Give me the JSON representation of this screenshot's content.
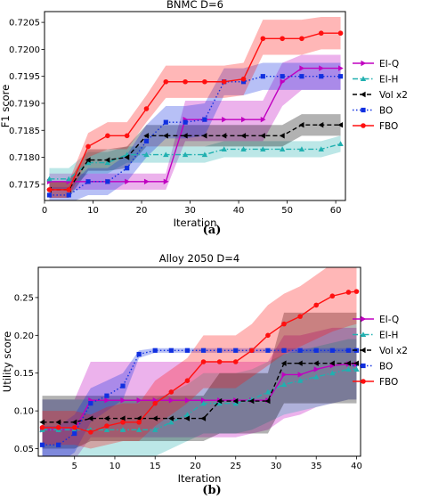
{
  "chart_data": [
    {
      "type": "line",
      "title": "BNMC    D=6",
      "xlabel": "Iteration",
      "ylabel": "F1 score",
      "xlim": [
        0,
        62
      ],
      "ylim": [
        0.7172,
        0.7207
      ],
      "xticks": [
        0,
        10,
        20,
        30,
        40,
        50,
        60
      ],
      "yticks": [
        0.7175,
        0.718,
        0.7185,
        0.719,
        0.7195,
        0.72,
        0.7205
      ],
      "ytick_labels": [
        "0.7175",
        "0.7180",
        "0.7185",
        "0.7190",
        "0.7195",
        "0.7200",
        "0.7205"
      ],
      "sublabel": "(a)",
      "legend_position": "right",
      "series": [
        {
          "name": "EI-Q",
          "color": "#c000c0",
          "dash": "solid",
          "marker": "triangle-right",
          "x": [
            1,
            5,
            9,
            13,
            17,
            21,
            25,
            29,
            33,
            37,
            41,
            45,
            49,
            53,
            57,
            61
          ],
          "y": [
            0.71755,
            0.71755,
            0.71755,
            0.71755,
            0.71755,
            0.71755,
            0.71755,
            0.7187,
            0.7187,
            0.7187,
            0.7187,
            0.7187,
            0.7194,
            0.71965,
            0.71965,
            0.71965
          ],
          "lo": [
            0.7174,
            0.7174,
            0.7174,
            0.7174,
            0.7174,
            0.7174,
            0.7174,
            0.7183,
            0.7183,
            0.7183,
            0.7183,
            0.7183,
            0.71895,
            0.71925,
            0.71925,
            0.71925
          ],
          "hi": [
            0.7177,
            0.7177,
            0.7177,
            0.7177,
            0.7177,
            0.7177,
            0.7177,
            0.71905,
            0.71905,
            0.71905,
            0.71905,
            0.71905,
            0.71975,
            0.7199,
            0.7199,
            0.7199
          ]
        },
        {
          "name": "EI-H",
          "color": "#20b0b0",
          "dash": "dashdot",
          "marker": "triangle-up",
          "x": [
            1,
            5,
            9,
            13,
            17,
            21,
            25,
            29,
            33,
            37,
            41,
            45,
            49,
            53,
            57,
            61
          ],
          "y": [
            0.7176,
            0.7176,
            0.7179,
            0.7179,
            0.71805,
            0.71805,
            0.71805,
            0.71805,
            0.71805,
            0.71815,
            0.71815,
            0.71815,
            0.71815,
            0.71815,
            0.71815,
            0.71825
          ],
          "lo": [
            0.7174,
            0.7174,
            0.7177,
            0.7177,
            0.7179,
            0.7179,
            0.7179,
            0.7179,
            0.7179,
            0.718,
            0.718,
            0.718,
            0.718,
            0.718,
            0.718,
            0.7181
          ],
          "hi": [
            0.7178,
            0.7178,
            0.7181,
            0.7181,
            0.7182,
            0.7182,
            0.7182,
            0.7182,
            0.7182,
            0.7183,
            0.7183,
            0.7183,
            0.7183,
            0.7183,
            0.7183,
            0.7184
          ]
        },
        {
          "name": "Vol x2",
          "color": "#000000",
          "dash": "dashed",
          "marker": "triangle-left",
          "x": [
            1,
            5,
            9,
            13,
            17,
            21,
            25,
            29,
            33,
            37,
            41,
            45,
            49,
            53,
            57,
            61
          ],
          "y": [
            0.7174,
            0.7174,
            0.71795,
            0.71795,
            0.718,
            0.7184,
            0.7184,
            0.7184,
            0.7184,
            0.7184,
            0.7184,
            0.7184,
            0.7184,
            0.7186,
            0.7186,
            0.7186
          ],
          "lo": [
            0.71725,
            0.71725,
            0.71775,
            0.71775,
            0.7178,
            0.7182,
            0.7182,
            0.7182,
            0.7182,
            0.7182,
            0.7182,
            0.7182,
            0.7182,
            0.7184,
            0.7184,
            0.7184
          ],
          "hi": [
            0.71755,
            0.71755,
            0.71815,
            0.71815,
            0.7182,
            0.7186,
            0.7186,
            0.7186,
            0.7186,
            0.7186,
            0.7186,
            0.7186,
            0.7186,
            0.7188,
            0.7188,
            0.7188
          ]
        },
        {
          "name": "BO",
          "color": "#1030e0",
          "dash": "dotted",
          "marker": "square",
          "x": [
            1,
            5,
            9,
            13,
            17,
            21,
            25,
            29,
            33,
            37,
            41,
            45,
            49,
            53,
            57,
            61
          ],
          "y": [
            0.7173,
            0.7173,
            0.71755,
            0.71755,
            0.7178,
            0.7183,
            0.71865,
            0.71865,
            0.7187,
            0.7194,
            0.7194,
            0.7195,
            0.7195,
            0.7195,
            0.7195,
            0.7195
          ],
          "lo": [
            0.71715,
            0.71715,
            0.7173,
            0.7173,
            0.71755,
            0.718,
            0.71835,
            0.71835,
            0.7184,
            0.71915,
            0.71915,
            0.71925,
            0.71925,
            0.71925,
            0.71925,
            0.71925
          ],
          "hi": [
            0.71745,
            0.71745,
            0.7178,
            0.7178,
            0.71805,
            0.7186,
            0.71895,
            0.71895,
            0.719,
            0.71965,
            0.71965,
            0.71975,
            0.71975,
            0.71975,
            0.71975,
            0.71975
          ]
        },
        {
          "name": "FBO",
          "color": "#ff1010",
          "dash": "solid",
          "marker": "circle",
          "x": [
            1,
            5,
            9,
            13,
            17,
            21,
            25,
            29,
            33,
            37,
            41,
            45,
            49,
            53,
            57,
            61
          ],
          "y": [
            0.7174,
            0.7174,
            0.7182,
            0.7184,
            0.7184,
            0.7189,
            0.7194,
            0.7194,
            0.7194,
            0.7194,
            0.71945,
            0.7202,
            0.7202,
            0.7202,
            0.7203,
            0.7203
          ],
          "lo": [
            0.71725,
            0.71725,
            0.718,
            0.71815,
            0.71815,
            0.71865,
            0.7191,
            0.7191,
            0.7191,
            0.7191,
            0.71915,
            0.7199,
            0.7199,
            0.7199,
            0.72,
            0.72
          ],
          "hi": [
            0.71755,
            0.71755,
            0.71845,
            0.71865,
            0.71865,
            0.71915,
            0.7197,
            0.7197,
            0.7197,
            0.7197,
            0.71975,
            0.72055,
            0.72055,
            0.72055,
            0.7206,
            0.7206
          ]
        }
      ]
    },
    {
      "type": "line",
      "title": "Alloy 2050    D=4",
      "xlabel": "Iteration",
      "ylabel": "Utility score",
      "xlim": [
        0.5,
        40.5
      ],
      "ylim": [
        0.04,
        0.29
      ],
      "xticks": [
        5,
        10,
        15,
        20,
        25,
        30,
        35,
        40
      ],
      "yticks": [
        0.05,
        0.1,
        0.15,
        0.2,
        0.25
      ],
      "ytick_labels": [
        "0.05",
        "0.10",
        "0.15",
        "0.20",
        "0.25"
      ],
      "sublabel": "(b)",
      "legend_position": "right",
      "series": [
        {
          "name": "EI-Q",
          "color": "#c000c0",
          "dash": "solid",
          "marker": "triangle-right",
          "x": [
            1,
            3,
            5,
            7,
            9,
            11,
            13,
            15,
            17,
            19,
            21,
            23,
            25,
            27,
            29,
            31,
            33,
            35,
            37,
            39,
            40
          ],
          "y": [
            0.075,
            0.075,
            0.075,
            0.114,
            0.114,
            0.114,
            0.114,
            0.114,
            0.114,
            0.114,
            0.114,
            0.114,
            0.114,
            0.114,
            0.114,
            0.148,
            0.148,
            0.155,
            0.16,
            0.162,
            0.162
          ],
          "lo": [
            0.035,
            0.035,
            0.035,
            0.065,
            0.065,
            0.065,
            0.065,
            0.065,
            0.065,
            0.065,
            0.065,
            0.065,
            0.065,
            0.07,
            0.075,
            0.09,
            0.095,
            0.105,
            0.11,
            0.115,
            0.115
          ],
          "hi": [
            0.115,
            0.115,
            0.115,
            0.165,
            0.165,
            0.165,
            0.165,
            0.165,
            0.165,
            0.165,
            0.165,
            0.165,
            0.165,
            0.165,
            0.165,
            0.2,
            0.2,
            0.205,
            0.21,
            0.21,
            0.21
          ]
        },
        {
          "name": "EI-H",
          "color": "#20b0b0",
          "dash": "dashdot",
          "marker": "triangle-up",
          "x": [
            1,
            3,
            5,
            7,
            9,
            11,
            13,
            15,
            17,
            19,
            21,
            23,
            25,
            27,
            29,
            31,
            33,
            35,
            37,
            39,
            40
          ],
          "y": [
            0.075,
            0.075,
            0.075,
            0.075,
            0.075,
            0.075,
            0.075,
            0.075,
            0.085,
            0.095,
            0.11,
            0.11,
            0.11,
            0.115,
            0.125,
            0.135,
            0.14,
            0.145,
            0.15,
            0.155,
            0.155
          ],
          "lo": [
            0.035,
            0.035,
            0.035,
            0.035,
            0.035,
            0.035,
            0.035,
            0.04,
            0.05,
            0.06,
            0.07,
            0.07,
            0.07,
            0.075,
            0.085,
            0.095,
            0.1,
            0.105,
            0.11,
            0.115,
            0.115
          ],
          "hi": [
            0.115,
            0.115,
            0.115,
            0.115,
            0.115,
            0.115,
            0.115,
            0.115,
            0.125,
            0.135,
            0.15,
            0.15,
            0.15,
            0.155,
            0.165,
            0.175,
            0.18,
            0.185,
            0.19,
            0.195,
            0.195
          ]
        },
        {
          "name": "Vol x2",
          "color": "#000000",
          "dash": "dashed",
          "marker": "triangle-left",
          "x": [
            1,
            3,
            5,
            7,
            9,
            11,
            13,
            15,
            17,
            19,
            21,
            23,
            25,
            27,
            29,
            31,
            33,
            35,
            37,
            39,
            40
          ],
          "y": [
            0.085,
            0.085,
            0.085,
            0.09,
            0.09,
            0.09,
            0.09,
            0.09,
            0.09,
            0.09,
            0.09,
            0.113,
            0.113,
            0.113,
            0.113,
            0.163,
            0.163,
            0.163,
            0.163,
            0.163,
            0.163
          ],
          "lo": [
            0.05,
            0.05,
            0.05,
            0.06,
            0.06,
            0.06,
            0.06,
            0.06,
            0.06,
            0.06,
            0.06,
            0.07,
            0.07,
            0.07,
            0.07,
            0.11,
            0.11,
            0.11,
            0.11,
            0.11,
            0.11
          ],
          "hi": [
            0.12,
            0.12,
            0.12,
            0.12,
            0.12,
            0.12,
            0.12,
            0.12,
            0.12,
            0.12,
            0.12,
            0.15,
            0.15,
            0.15,
            0.15,
            0.23,
            0.23,
            0.23,
            0.23,
            0.23,
            0.23
          ]
        },
        {
          "name": "BO",
          "color": "#1030e0",
          "dash": "dotted",
          "marker": "square",
          "x": [
            1,
            3,
            5,
            7,
            9,
            11,
            13,
            15,
            17,
            19,
            21,
            23,
            25,
            27,
            29,
            31,
            33,
            35,
            37,
            39,
            40
          ],
          "y": [
            0.055,
            0.055,
            0.07,
            0.11,
            0.12,
            0.133,
            0.175,
            0.18,
            0.18,
            0.18,
            0.18,
            0.18,
            0.18,
            0.18,
            0.18,
            0.18,
            0.18,
            0.18,
            0.18,
            0.18,
            0.18
          ],
          "lo": [
            0.03,
            0.03,
            0.045,
            0.085,
            0.1,
            0.115,
            0.17,
            0.177,
            0.177,
            0.177,
            0.177,
            0.177,
            0.177,
            0.177,
            0.177,
            0.177,
            0.177,
            0.177,
            0.177,
            0.177,
            0.177
          ],
          "hi": [
            0.08,
            0.08,
            0.095,
            0.13,
            0.14,
            0.15,
            0.18,
            0.183,
            0.183,
            0.183,
            0.183,
            0.183,
            0.183,
            0.183,
            0.183,
            0.183,
            0.183,
            0.183,
            0.183,
            0.183,
            0.183
          ]
        },
        {
          "name": "FBO",
          "color": "#ff1010",
          "dash": "solid",
          "marker": "circle",
          "x": [
            1,
            3,
            5,
            7,
            9,
            11,
            13,
            15,
            17,
            19,
            21,
            23,
            25,
            27,
            29,
            31,
            33,
            35,
            37,
            39,
            40
          ],
          "y": [
            0.078,
            0.078,
            0.078,
            0.072,
            0.08,
            0.085,
            0.085,
            0.11,
            0.125,
            0.14,
            0.165,
            0.165,
            0.165,
            0.18,
            0.2,
            0.215,
            0.225,
            0.24,
            0.252,
            0.257,
            0.258
          ],
          "lo": [
            0.055,
            0.055,
            0.055,
            0.05,
            0.055,
            0.06,
            0.06,
            0.08,
            0.095,
            0.11,
            0.13,
            0.13,
            0.13,
            0.145,
            0.16,
            0.175,
            0.185,
            0.195,
            0.205,
            0.212,
            0.215
          ],
          "hi": [
            0.1,
            0.1,
            0.1,
            0.095,
            0.105,
            0.11,
            0.11,
            0.14,
            0.155,
            0.17,
            0.2,
            0.2,
            0.2,
            0.215,
            0.24,
            0.255,
            0.265,
            0.28,
            0.295,
            0.3,
            0.3
          ]
        }
      ]
    }
  ]
}
